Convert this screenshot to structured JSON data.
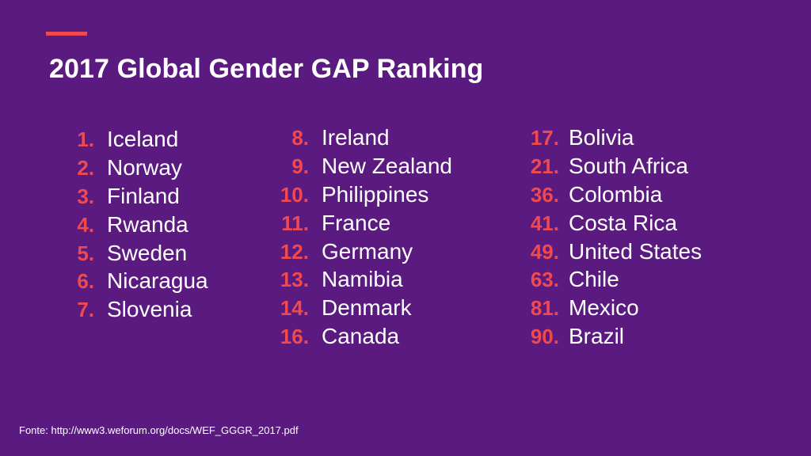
{
  "slide": {
    "title": "2017 Global Gender GAP Ranking",
    "source": "Fonte: http://www3.weforum.org/docs/WEF_GGGR_2017.pdf"
  },
  "columns": [
    {
      "rows": [
        {
          "rank": "1.",
          "country": "Iceland"
        },
        {
          "rank": "2.",
          "country": "Norway"
        },
        {
          "rank": "3.",
          "country": "Finland"
        },
        {
          "rank": "4.",
          "country": "Rwanda"
        },
        {
          "rank": "5.",
          "country": "Sweden"
        },
        {
          "rank": "6.",
          "country": "Nicaragua"
        },
        {
          "rank": "7.",
          "country": "Slovenia"
        }
      ]
    },
    {
      "rows": [
        {
          "rank": "8.",
          "country": "Ireland"
        },
        {
          "rank": "9.",
          "country": "New Zealand"
        },
        {
          "rank": "10.",
          "country": "Philippines"
        },
        {
          "rank": "11.",
          "country": "France"
        },
        {
          "rank": "12.",
          "country": "Germany"
        },
        {
          "rank": "13.",
          "country": "Namibia"
        },
        {
          "rank": "14.",
          "country": "Denmark"
        },
        {
          "rank": "16.",
          "country": "Canada"
        }
      ]
    },
    {
      "rows": [
        {
          "rank": "17.",
          "country": "Bolivia"
        },
        {
          "rank": "21.",
          "country": "South Africa"
        },
        {
          "rank": "36.",
          "country": "Colombia"
        },
        {
          "rank": "41.",
          "country": "Costa Rica"
        },
        {
          "rank": "49.",
          "country": "United States"
        },
        {
          "rank": "63.",
          "country": "Chile"
        },
        {
          "rank": "81.",
          "country": "Mexico"
        },
        {
          "rank": "90.",
          "country": "Brazil"
        }
      ]
    }
  ],
  "colors": {
    "background": "#5a1a7f",
    "accent": "#ee4a4f",
    "text": "#ffffff"
  }
}
